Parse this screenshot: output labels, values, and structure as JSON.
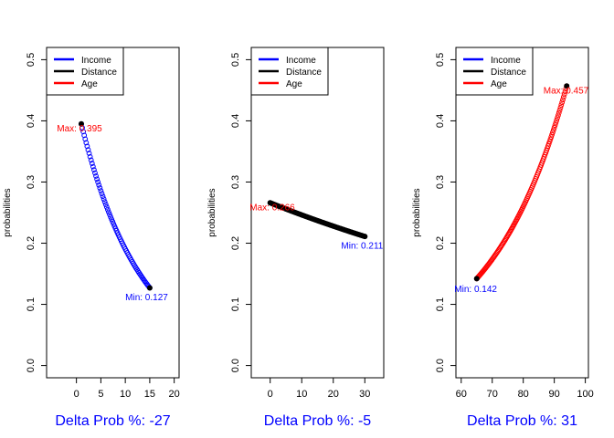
{
  "chart_data": [
    {
      "type": "scatter",
      "ylabel": "probabilities",
      "xlabel": "Delta Prob %: -27",
      "xlim": [
        -6.1,
        21
      ],
      "ylim": [
        -0.02,
        0.52
      ],
      "xticks": [
        "0",
        "5",
        "10",
        "15",
        "20"
      ],
      "yticks": [
        "0.0",
        "0.1",
        "0.2",
        "0.3",
        "0.4",
        "0.5"
      ],
      "xtick_values": [
        0,
        5,
        10,
        15,
        20
      ],
      "ytick_values": [
        0,
        0.1,
        0.2,
        0.3,
        0.4,
        0.5
      ],
      "legend": {
        "placement": "top-left",
        "items": [
          {
            "label": "Income",
            "color": "#0000ff"
          },
          {
            "label": "Distance",
            "color": "#000000"
          },
          {
            "label": "Age",
            "color": "#ff0000"
          }
        ]
      },
      "series": [
        {
          "color": "#0000ff",
          "x_start": 1,
          "x_end": 15,
          "points": 71,
          "y_start": 0.395,
          "y_end": 0.127,
          "curve": "exp"
        }
      ],
      "annotations": [
        {
          "text": "Max: 0.395",
          "x": -4.0,
          "y": 0.383,
          "color": "#ff0000"
        },
        {
          "text": "Min: 0.127",
          "x": 10.0,
          "y": 0.107,
          "color": "#0000ff"
        }
      ]
    },
    {
      "type": "scatter",
      "ylabel": "probabilities",
      "xlabel": "Delta Prob %: -5",
      "xlim": [
        -6.0,
        36
      ],
      "ylim": [
        -0.02,
        0.52
      ],
      "xticks": [
        "0",
        "10",
        "20",
        "30"
      ],
      "yticks": [
        "0.0",
        "0.1",
        "0.2",
        "0.3",
        "0.4",
        "0.5"
      ],
      "xtick_values": [
        0,
        10,
        20,
        30
      ],
      "ytick_values": [
        0,
        0.1,
        0.2,
        0.3,
        0.4,
        0.5
      ],
      "legend": {
        "placement": "top-left",
        "items": [
          {
            "label": "Income",
            "color": "#0000ff"
          },
          {
            "label": "Distance",
            "color": "#000000"
          },
          {
            "label": "Age",
            "color": "#ff0000"
          }
        ]
      },
      "series": [
        {
          "color": "#000000",
          "x_start": 0,
          "x_end": 30,
          "points": 121,
          "y_start": 0.266,
          "y_end": 0.211,
          "curve": "exp"
        }
      ],
      "annotations": [
        {
          "text": "Max: 0.266",
          "x": -6.5,
          "y": 0.254,
          "color": "#ff0000"
        },
        {
          "text": "Min: 0.211",
          "x": 22.5,
          "y": 0.191,
          "color": "#0000ff"
        }
      ]
    },
    {
      "type": "scatter",
      "ylabel": "probabilities",
      "xlabel": "Delta Prob %: 31",
      "xlim": [
        58.3,
        101
      ],
      "ylim": [
        -0.02,
        0.52
      ],
      "xticks": [
        "60",
        "70",
        "80",
        "90",
        "100"
      ],
      "yticks": [
        "0.0",
        "0.1",
        "0.2",
        "0.3",
        "0.4",
        "0.5"
      ],
      "xtick_values": [
        60,
        70,
        80,
        90,
        100
      ],
      "ytick_values": [
        0,
        0.1,
        0.2,
        0.3,
        0.4,
        0.5
      ],
      "legend": {
        "placement": "top-left",
        "items": [
          {
            "label": "Income",
            "color": "#0000ff"
          },
          {
            "label": "Distance",
            "color": "#000000"
          },
          {
            "label": "Age",
            "color": "#ff0000"
          }
        ]
      },
      "series": [
        {
          "color": "#ff0000",
          "x_start": 65,
          "x_end": 94,
          "points": 117,
          "y_start": 0.142,
          "y_end": 0.457,
          "curve": "exp"
        }
      ],
      "annotations": [
        {
          "text": "Max: 0.457",
          "x": 86.5,
          "y": 0.445,
          "color": "#ff0000"
        },
        {
          "text": "Min: 0.142",
          "x": 57.8,
          "y": 0.12,
          "color": "#0000ff"
        }
      ]
    }
  ]
}
